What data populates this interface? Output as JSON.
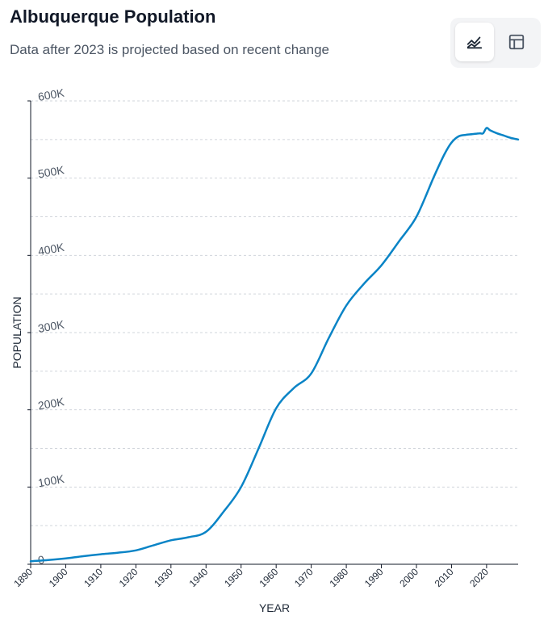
{
  "header": {
    "title": "Albuquerque Population",
    "subtitle": "Data after 2023 is projected based on recent change"
  },
  "view_toggle": {
    "options": [
      {
        "icon": "line-chart-icon",
        "active": true
      },
      {
        "icon": "table-icon",
        "active": false
      }
    ]
  },
  "colors": {
    "line": "#0a84c6",
    "axis": "#111827",
    "grid": "#d1d5db",
    "tick_text": "#4b5563"
  },
  "chart_data": {
    "type": "line",
    "title": "Albuquerque Population",
    "subtitle": "Data after 2023 is projected based on recent change",
    "xlabel": "YEAR",
    "ylabel": "POPULATION",
    "xlim": [
      1890,
      2029
    ],
    "ylim": [
      0,
      600000
    ],
    "grid": true,
    "x_ticks": [
      1890,
      1900,
      1910,
      1920,
      1930,
      1940,
      1950,
      1960,
      1970,
      1980,
      1990,
      2000,
      2010,
      2020
    ],
    "y_ticks": [
      0,
      100000,
      200000,
      300000,
      400000,
      500000,
      600000
    ],
    "y_tick_labels": [
      "0",
      "100K",
      "200K",
      "300K",
      "400K",
      "500K",
      "600K"
    ],
    "series": [
      {
        "x": [
          1890,
          1895,
          1900,
          1905,
          1910,
          1915,
          1920,
          1925,
          1930,
          1935,
          1940,
          1945,
          1950,
          1955,
          1960,
          1965,
          1970,
          1975,
          1980,
          1985,
          1990,
          1995,
          2000,
          2005,
          2008,
          2010,
          2012,
          2014,
          2016,
          2018,
          2019,
          2020,
          2021,
          2023,
          2025,
          2027,
          2029
        ],
        "y": [
          4000,
          5500,
          7500,
          10500,
          13000,
          15000,
          18000,
          24500,
          31000,
          35000,
          42000,
          68000,
          100000,
          150000,
          202000,
          228000,
          247000,
          293000,
          335000,
          363000,
          387000,
          418000,
          450000,
          502000,
          531000,
          546000,
          554000,
          556000,
          557000,
          558000,
          558000,
          565000,
          562000,
          558000,
          555000,
          552000,
          550000
        ]
      }
    ]
  }
}
